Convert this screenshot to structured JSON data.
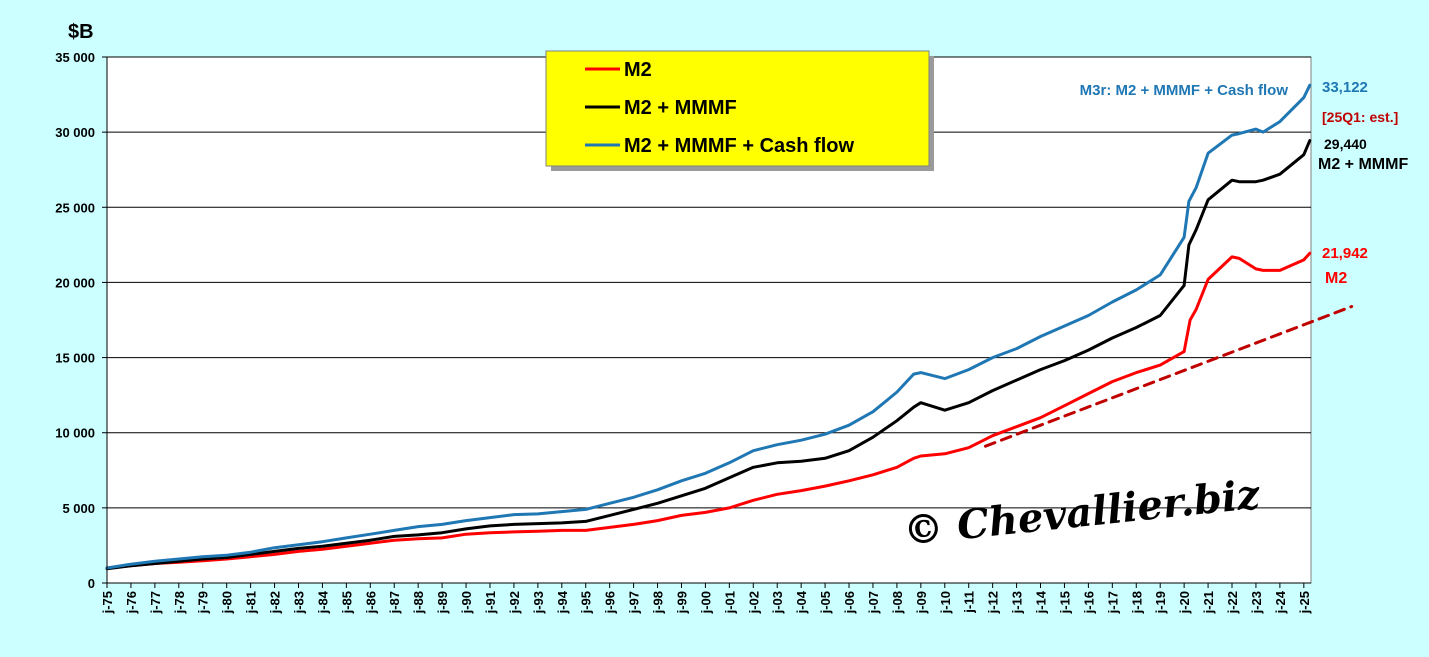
{
  "chart_data": {
    "type": "line",
    "ylabel": "$B",
    "ylim": [
      0,
      35000
    ],
    "xlim": [
      1975.0,
      2025.3
    ],
    "grid": "horizontal",
    "yticks": [
      0,
      5000,
      10000,
      15000,
      20000,
      25000,
      30000,
      35000
    ],
    "yticklabels": [
      "0",
      "5 000",
      "10 000",
      "15 000",
      "20 000",
      "25 000",
      "30 000",
      "35 000"
    ],
    "xticklabels": [
      "j-75",
      "j-76",
      "j-77",
      "j-78",
      "j-79",
      "j-80",
      "j-81",
      "j-82",
      "j-83",
      "j-84",
      "j-85",
      "j-86",
      "j-87",
      "j-88",
      "j-89",
      "j-90",
      "j-91",
      "j-92",
      "j-93",
      "j-94",
      "j-95",
      "j-96",
      "j-97",
      "j-98",
      "j-99",
      "j-00",
      "j-01",
      "j-02",
      "j-03",
      "j-04",
      "j-05",
      "j-06",
      "j-07",
      "j-08",
      "j-09",
      "j-10",
      "j-11",
      "j-12",
      "j-13",
      "j-14",
      "j-15",
      "j-16",
      "j-17",
      "j-18",
      "j-19",
      "j-20",
      "j-21",
      "j-22",
      "j-23",
      "j-24",
      "j-25"
    ],
    "legend": {
      "placement": "top-center",
      "entries": [
        {
          "label": "M2",
          "color": "#ff0000"
        },
        {
          "label": "M2 + MMMF",
          "color": "#000000"
        },
        {
          "label": "M2 + MMMF + Cash flow",
          "color": "#1f77b4"
        }
      ]
    },
    "series": [
      {
        "name": "M2",
        "color": "#ff0000",
        "x": [
          1975,
          1976,
          1977,
          1978,
          1979,
          1980,
          1981,
          1982,
          1983,
          1984,
          1985,
          1986,
          1987,
          1988,
          1989,
          1990,
          1991,
          1992,
          1993,
          1994,
          1995,
          1996,
          1997,
          1998,
          1999,
          2000,
          2001,
          2002,
          2003,
          2004,
          2005,
          2006,
          2007,
          2008,
          2008.7,
          2009,
          2010,
          2011,
          2012,
          2013,
          2014,
          2015,
          2016,
          2017,
          2018,
          2019,
          2020,
          2020.25,
          2020.5,
          2021,
          2022,
          2022.3,
          2023,
          2023.3,
          2024,
          2025,
          2025.25
        ],
        "values": [
          1000,
          1150,
          1300,
          1380,
          1480,
          1600,
          1750,
          1900,
          2100,
          2250,
          2450,
          2650,
          2850,
          2950,
          3000,
          3250,
          3350,
          3400,
          3450,
          3500,
          3500,
          3700,
          3900,
          4150,
          4500,
          4700,
          5000,
          5500,
          5900,
          6150,
          6450,
          6800,
          7200,
          7700,
          8300,
          8450,
          8600,
          9000,
          9800,
          10400,
          11000,
          11800,
          12600,
          13400,
          14000,
          14500,
          15400,
          17500,
          18200,
          20200,
          21700,
          21600,
          20900,
          20800,
          20800,
          21500,
          21942
        ]
      },
      {
        "name": "M2 + MMMF",
        "color": "#000000",
        "x": [
          1975,
          1976,
          1977,
          1978,
          1979,
          1980,
          1981,
          1982,
          1983,
          1984,
          1985,
          1986,
          1987,
          1988,
          1989,
          1990,
          1991,
          1992,
          1993,
          1994,
          1995,
          1996,
          1997,
          1998,
          1999,
          2000,
          2001,
          2002,
          2003,
          2004,
          2005,
          2006,
          2007,
          2008,
          2008.7,
          2009,
          2010,
          2011,
          2012,
          2013,
          2014,
          2015,
          2016,
          2017,
          2018,
          2019,
          2020,
          2020.2,
          2020.5,
          2021,
          2022,
          2022.3,
          2023,
          2023.3,
          2024,
          2025,
          2025.25
        ],
        "values": [
          950,
          1150,
          1300,
          1450,
          1600,
          1700,
          1900,
          2100,
          2300,
          2450,
          2650,
          2850,
          3100,
          3200,
          3350,
          3600,
          3800,
          3900,
          3950,
          4000,
          4100,
          4500,
          4900,
          5300,
          5800,
          6300,
          7000,
          7700,
          8000,
          8100,
          8300,
          8800,
          9700,
          10800,
          11700,
          12000,
          11500,
          12000,
          12800,
          13500,
          14200,
          14800,
          15500,
          16300,
          17000,
          17800,
          19800,
          22500,
          23500,
          25500,
          26800,
          26700,
          26700,
          26800,
          27200,
          28500,
          29440
        ]
      },
      {
        "name": "M2 + MMMF + Cash flow",
        "color": "#1f77b4",
        "x": [
          1975,
          1976,
          1977,
          1978,
          1979,
          1980,
          1981,
          1982,
          1983,
          1984,
          1985,
          1986,
          1987,
          1988,
          1989,
          1990,
          1991,
          1992,
          1993,
          1994,
          1995,
          1996,
          1997,
          1998,
          1999,
          2000,
          2001,
          2002,
          2003,
          2004,
          2005,
          2006,
          2007,
          2008,
          2008.7,
          2009,
          2010,
          2011,
          2012,
          2013,
          2014,
          2015,
          2016,
          2017,
          2018,
          2019,
          2020,
          2020.2,
          2020.5,
          2021,
          2022,
          2022.3,
          2023,
          2023.3,
          2024,
          2025,
          2025.25
        ],
        "values": [
          1000,
          1250,
          1450,
          1600,
          1750,
          1850,
          2050,
          2350,
          2550,
          2750,
          3000,
          3250,
          3500,
          3750,
          3900,
          4150,
          4350,
          4550,
          4600,
          4750,
          4900,
          5300,
          5700,
          6200,
          6800,
          7300,
          8000,
          8800,
          9200,
          9500,
          9900,
          10500,
          11400,
          12700,
          13900,
          14000,
          13600,
          14200,
          15000,
          15600,
          16400,
          17100,
          17800,
          18700,
          19500,
          20500,
          23000,
          25400,
          26300,
          28600,
          29800,
          29900,
          30200,
          30000,
          30700,
          32300,
          33122
        ]
      },
      {
        "name": "",
        "color": "#c00000",
        "dashed": true,
        "x": [
          2011.7,
          2027
        ],
        "values": [
          9100,
          18400
        ]
      }
    ],
    "annotations": {
      "m3r_title": "M3r: M2 + MMMF + Cash flow",
      "m3r_value": "33,122",
      "estimate_note": "[25Q1: est.]",
      "mmmf_value": "29,440",
      "mmmf_label": "M2 + MMMF",
      "m2_value": "21,942",
      "m2_label": "M2"
    }
  },
  "watermark": "© Chevallier.biz"
}
